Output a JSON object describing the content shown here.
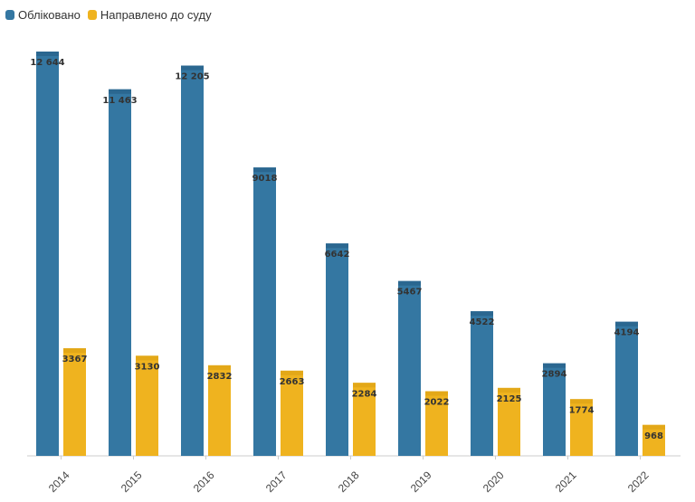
{
  "chart_data": {
    "type": "bar",
    "title": "",
    "xlabel": "",
    "ylabel": "",
    "ylim": [
      0,
      13000
    ],
    "grid": false,
    "legend_position": "top-left",
    "categories": [
      "2014",
      "2015",
      "2016",
      "2017",
      "2018",
      "2019",
      "2020",
      "2021",
      "2022"
    ],
    "series": [
      {
        "name": "Обліковано",
        "color": "#3477a2",
        "values": [
          12644,
          11463,
          12205,
          9018,
          6642,
          5467,
          4522,
          2894,
          4194
        ],
        "labels": [
          "12 644",
          "11 463",
          "12 205",
          "9018",
          "6642",
          "5467",
          "4522",
          "2894",
          "4194"
        ]
      },
      {
        "name": "Направлено до суду",
        "color": "#efb31f",
        "values": [
          3367,
          3130,
          2832,
          2663,
          2284,
          2022,
          2125,
          1774,
          968
        ],
        "labels": [
          "3367",
          "3130",
          "2832",
          "2663",
          "2284",
          "2022",
          "2125",
          "1774",
          "968"
        ]
      }
    ]
  }
}
